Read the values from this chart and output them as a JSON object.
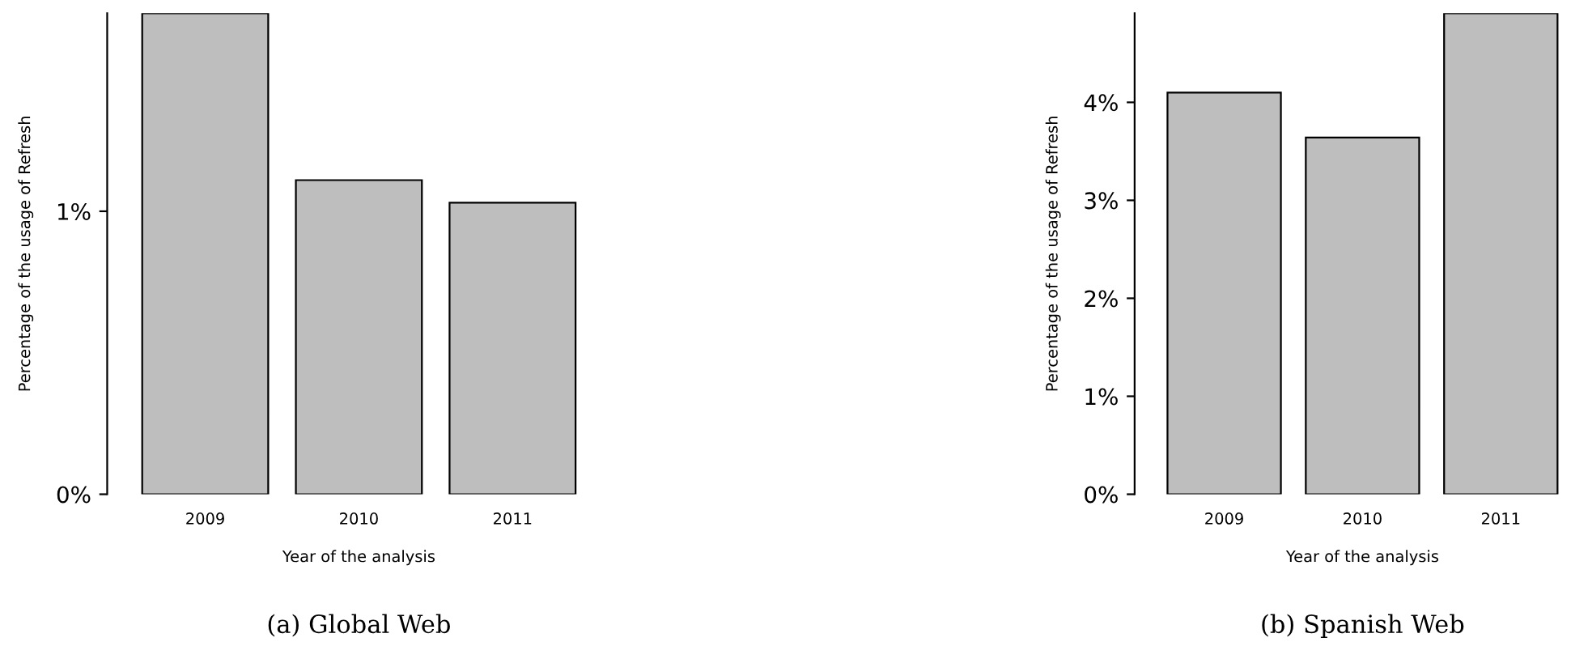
{
  "chart_data": [
    {
      "type": "bar",
      "title": "(a) Global Web",
      "xlabel": "Year of the analysis",
      "ylabel": "Percentage of the usage of Refresh",
      "categories": [
        "2009",
        "2010",
        "2011"
      ],
      "values": [
        1.7,
        1.11,
        1.03
      ],
      "color": "#bebebe",
      "ylim": [
        0,
        1.7
      ],
      "yticks": [
        {
          "value": 0,
          "label": "0%"
        },
        {
          "value": 1,
          "label": "1%"
        }
      ],
      "grid": false
    },
    {
      "type": "bar",
      "title": "(b) Spanish Web",
      "xlabel": "Year of the analysis",
      "ylabel": "Percentage of the usage of Refresh",
      "categories": [
        "2009",
        "2010",
        "2011"
      ],
      "values": [
        4.1,
        3.64,
        4.91
      ],
      "color": "#bebebe",
      "ylim": [
        0,
        4.91
      ],
      "yticks": [
        {
          "value": 0,
          "label": "0%"
        },
        {
          "value": 1,
          "label": "1%"
        },
        {
          "value": 2,
          "label": "2%"
        },
        {
          "value": 3,
          "label": "3%"
        },
        {
          "value": 4,
          "label": "4%"
        }
      ],
      "grid": false
    }
  ]
}
